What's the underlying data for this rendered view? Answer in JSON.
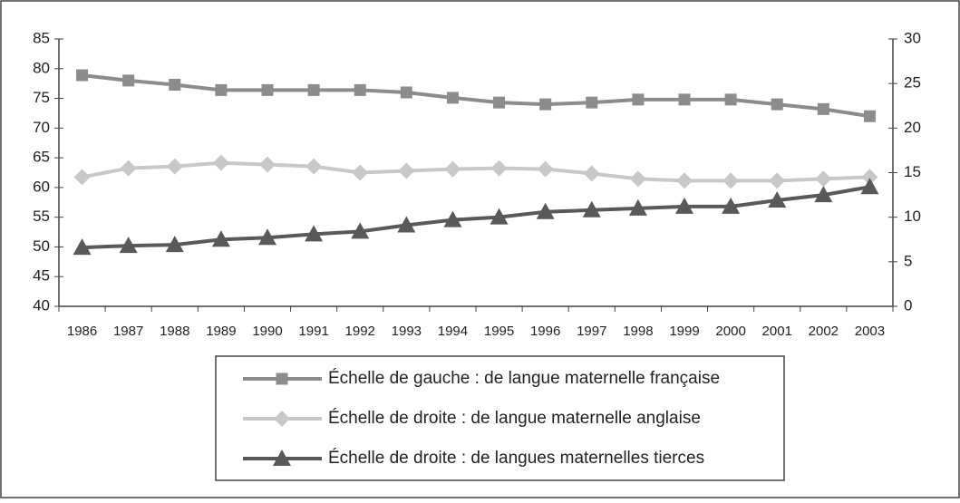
{
  "chart_data": {
    "type": "line",
    "categories": [
      "1986",
      "1987",
      "1988",
      "1989",
      "1990",
      "1991",
      "1992",
      "1993",
      "1994",
      "1995",
      "1996",
      "1997",
      "1998",
      "1999",
      "2000",
      "2001",
      "2002",
      "2003"
    ],
    "series": [
      {
        "name": "Échelle de gauche : de langue maternelle française",
        "color": "#8c8c8c",
        "marker": "square",
        "axis": "y",
        "values": [
          78.9,
          78.0,
          77.3,
          76.4,
          76.4,
          76.4,
          76.4,
          76.0,
          75.1,
          74.3,
          74.0,
          74.3,
          74.8,
          74.8,
          74.8,
          74.0,
          73.2,
          72.0
        ]
      },
      {
        "name": "Échelle de droite : de langue maternelle anglaise",
        "color": "#c8c8c8",
        "marker": "diamond",
        "axis": "y2",
        "values": [
          14.5,
          15.5,
          15.7,
          16.1,
          15.9,
          15.7,
          15.0,
          15.2,
          15.4,
          15.5,
          15.4,
          14.9,
          14.3,
          14.1,
          14.1,
          14.1,
          14.3,
          14.5
        ]
      },
      {
        "name": "Échelle de droite : de langues maternelles tierces",
        "color": "#595959",
        "marker": "triangle",
        "axis": "y2",
        "values": [
          6.6,
          6.8,
          6.9,
          7.5,
          7.7,
          8.1,
          8.4,
          9.1,
          9.7,
          10.0,
          10.6,
          10.8,
          11.0,
          11.2,
          11.2,
          11.9,
          12.5,
          13.4
        ]
      }
    ],
    "ylim": [
      40,
      85
    ],
    "yticks": [
      40,
      45,
      50,
      55,
      60,
      65,
      70,
      75,
      80,
      85
    ],
    "y2lim": [
      0,
      30
    ],
    "y2ticks": [
      0,
      5,
      10,
      15,
      20,
      25,
      30
    ]
  }
}
